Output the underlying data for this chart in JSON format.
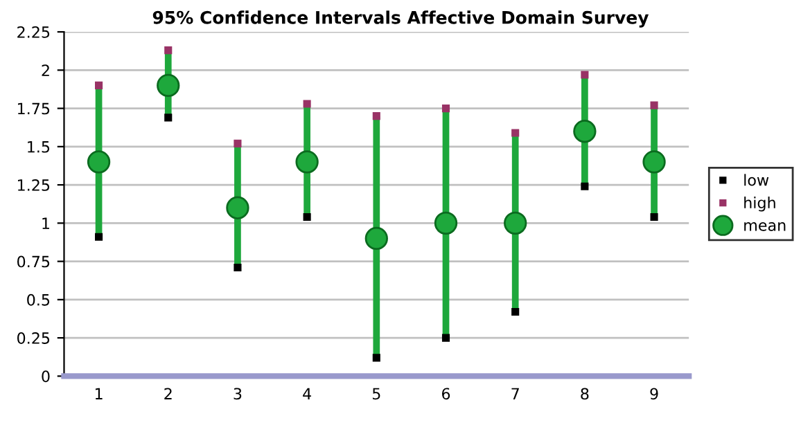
{
  "chart_data": {
    "type": "scatter",
    "title": "95% Confidence Intervals Affective Domain Survey",
    "categories": [
      "1",
      "2",
      "3",
      "4",
      "5",
      "6",
      "7",
      "8",
      "9"
    ],
    "series": [
      {
        "name": "low",
        "color": "#000000",
        "marker": "square",
        "values": [
          0.91,
          1.69,
          0.71,
          1.04,
          0.12,
          0.25,
          0.42,
          1.24,
          1.04
        ]
      },
      {
        "name": "high",
        "color": "#993366",
        "marker": "square",
        "values": [
          1.9,
          2.13,
          1.52,
          1.78,
          1.7,
          1.75,
          1.59,
          1.97,
          1.77
        ]
      },
      {
        "name": "mean",
        "color": "#1ea83c",
        "marker": "circle",
        "values": [
          1.4,
          1.9,
          1.1,
          1.4,
          0.9,
          1.0,
          1.0,
          1.6,
          1.4
        ]
      }
    ],
    "ylim": [
      0,
      2.25
    ],
    "yticks": [
      0,
      0.25,
      0.5,
      0.75,
      1,
      1.25,
      1.5,
      1.75,
      2,
      2.25
    ],
    "grid": "y",
    "legend": "right"
  }
}
